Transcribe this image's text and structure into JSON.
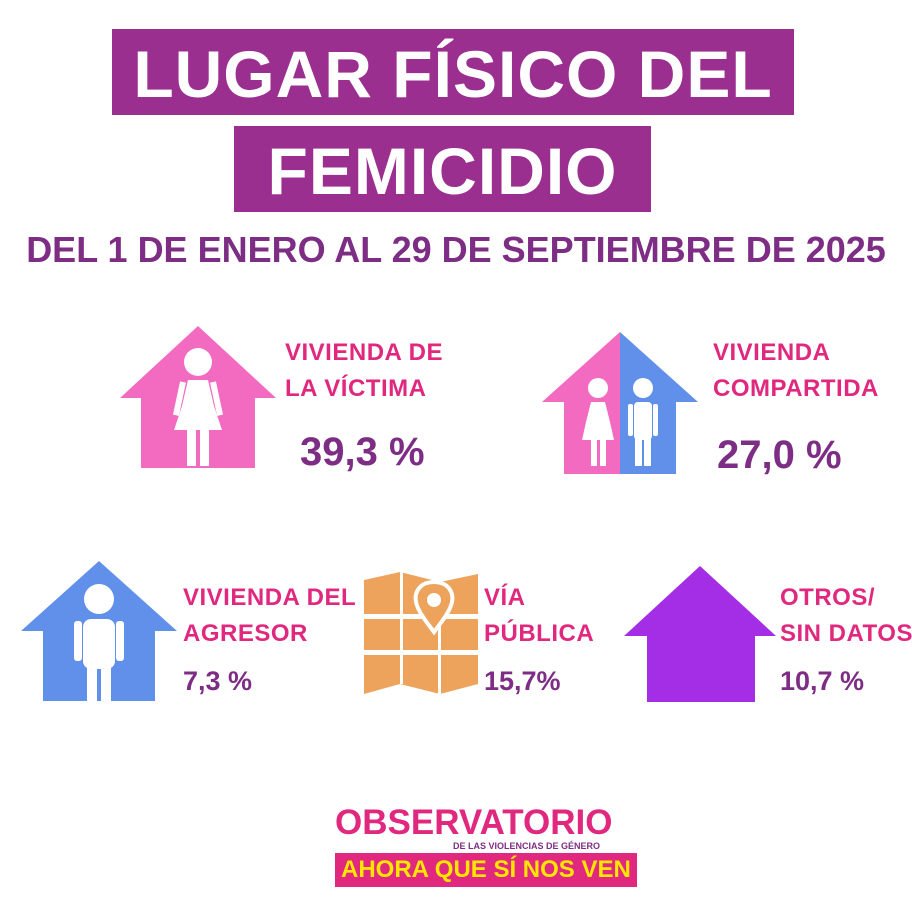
{
  "header": {
    "title_line1": "LUGAR FÍSICO DEL",
    "title_line2": "FEMICIDIO",
    "subtitle": "DEL 1 DE ENERO AL 29 DE SEPTIEMBRE DE 2025"
  },
  "colors": {
    "title_bg": "#9b2f8f",
    "label": "#e0287e",
    "value": "#7d2d84",
    "pink_house": "#f26bc0",
    "blue_house": "#6190ea",
    "purple_house": "#a42ee6",
    "map": "#eda35b"
  },
  "chart_data": {
    "type": "table",
    "categories": [
      "VIVIENDA DE LA VÍCTIMA",
      "VIVIENDA COMPARTIDA",
      "VIVIENDA DEL AGRESOR",
      "VÍA PÚBLICA",
      "OTROS/ SIN DATOS"
    ],
    "values": [
      39.3,
      27.0,
      7.3,
      15.7,
      10.7
    ],
    "unit": "%",
    "items": [
      {
        "label_lines": [
          "VIVIENDA DE",
          "LA VÍCTIMA"
        ],
        "value": "39,3 %",
        "icon": "woman-house-icon"
      },
      {
        "label_lines": [
          "VIVIENDA",
          "COMPARTIDA"
        ],
        "value": "27,0 %",
        "icon": "couple-house-icon"
      },
      {
        "label_lines": [
          "VIVIENDA DEL",
          "AGRESOR"
        ],
        "value": "7,3 %",
        "icon": "man-house-icon"
      },
      {
        "label_lines": [
          "VÍA",
          "PÚBLICA"
        ],
        "value": "15,7%",
        "icon": "map-pin-icon"
      },
      {
        "label_lines": [
          "OTROS/",
          "SIN DATOS"
        ],
        "value": "10,7 %",
        "icon": "house-icon"
      }
    ]
  },
  "logo": {
    "line1": "OBSERVATORIO",
    "line2": "DE LAS VIOLENCIAS DE GÉNERO",
    "line3": "AHORA QUE SÍ NOS VEN"
  }
}
